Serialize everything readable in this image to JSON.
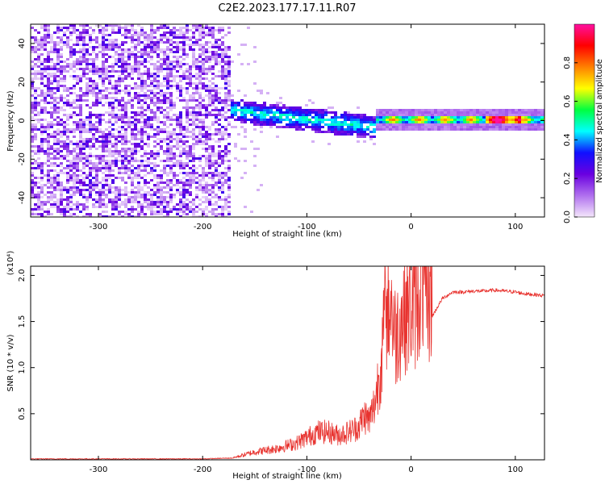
{
  "title": "C2E2.2023.177.17.11.R07",
  "chart_data": [
    {
      "type": "heatmap",
      "xlabel": "Height of straight line (km)",
      "ylabel": "Frequency (Hz)",
      "xlim": [
        -365,
        128
      ],
      "ylim": [
        -50,
        50
      ],
      "xticks": [
        -300,
        -200,
        -100,
        0,
        100
      ],
      "yticks": [
        -40,
        -20,
        0,
        20,
        40
      ],
      "colorbar": {
        "label": "Normalized spectral amplitude",
        "range": [
          0,
          1
        ],
        "ticks": [
          0.0,
          0.2,
          0.4,
          0.6,
          0.8
        ],
        "colors": [
          "#f4e6fb",
          "#b070ee",
          "#6a00e0",
          "#1010ff",
          "#00ffff",
          "#00ff40",
          "#ffff00",
          "#ff8000",
          "#ff0000",
          "#ff10a0"
        ]
      },
      "regions": [
        {
          "x": [
            -365,
            -175
          ],
          "freq_center": 0,
          "freq_halfwidth": 50,
          "amplitude": 0.1
        },
        {
          "x": [
            -175,
            -35
          ],
          "freq_center_start": 6,
          "freq_center_end": -3,
          "freq_halfwidth": 6,
          "amplitude": 0.3
        },
        {
          "x": [
            -35,
            128
          ],
          "freq_center": 1,
          "freq_halfwidth": 2,
          "amplitude": 0.6
        }
      ]
    },
    {
      "type": "line",
      "xlabel": "Height of straight line (km)",
      "ylabel": "SNR (10 * v/v)",
      "multiplier": "(x10⁴)",
      "xlim": [
        -365,
        128
      ],
      "ylim": [
        0,
        2.1
      ],
      "xticks": [
        -300,
        -200,
        -100,
        0,
        100
      ],
      "yticks": [
        0.5,
        1.0,
        1.5,
        2.0
      ],
      "series": [
        {
          "color": "#e8332f",
          "x": [
            -365,
            -300,
            -250,
            -200,
            -170,
            -150,
            -130,
            -110,
            -100,
            -90,
            -80,
            -70,
            -60,
            -50,
            -45,
            -40,
            -35,
            -30,
            -25,
            -20,
            -15,
            -10,
            -5,
            0,
            5,
            10,
            15,
            20,
            25,
            30,
            40,
            50,
            60,
            70,
            80,
            90,
            100,
            110,
            120,
            128
          ],
          "y": [
            0.01,
            0.01,
            0.01,
            0.01,
            0.02,
            0.07,
            0.1,
            0.15,
            0.2,
            0.25,
            0.25,
            0.22,
            0.25,
            0.3,
            0.4,
            0.35,
            0.5,
            0.8,
            1.2,
            1.45,
            1.1,
            1.25,
            1.35,
            1.35,
            1.4,
            1.5,
            1.4,
            1.55,
            1.65,
            1.75,
            1.82,
            1.82,
            1.83,
            1.83,
            1.84,
            1.83,
            1.82,
            1.8,
            1.79,
            1.78
          ]
        }
      ]
    }
  ]
}
